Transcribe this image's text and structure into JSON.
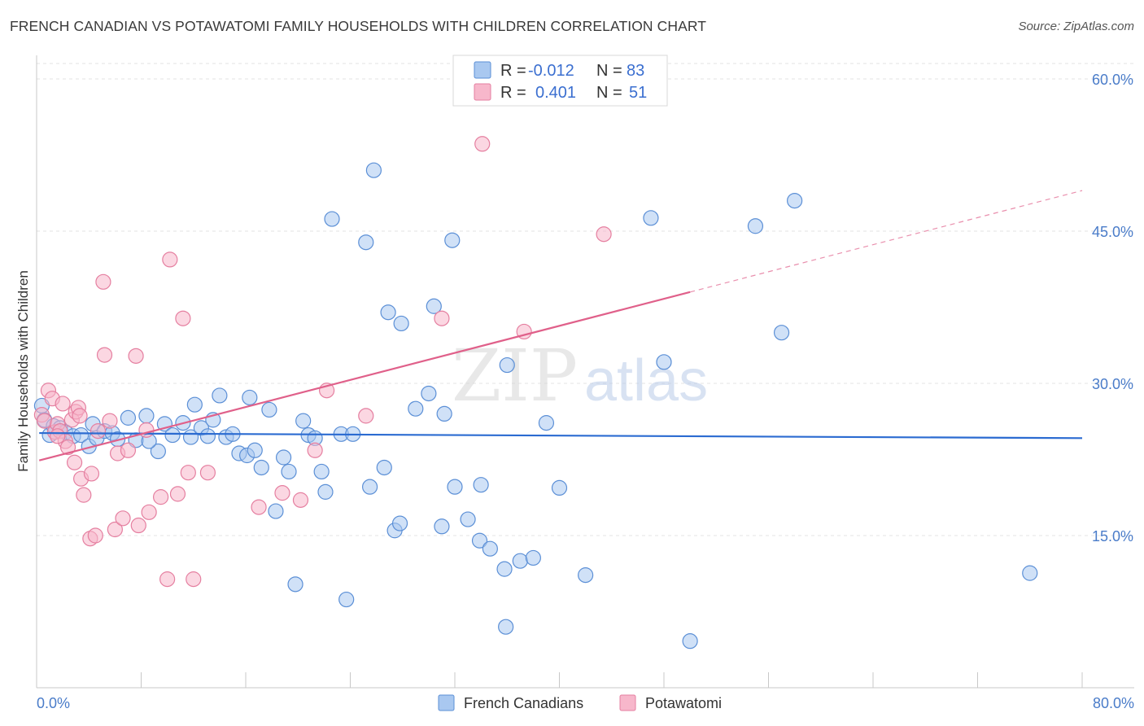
{
  "header": {
    "title": "FRENCH CANADIAN VS POTAWATOMI FAMILY HOUSEHOLDS WITH CHILDREN CORRELATION CHART",
    "source": "Source: ZipAtlas.com"
  },
  "watermark": {
    "zip": "ZIP",
    "atlas": "atlas"
  },
  "legend": {
    "r_label": "R =",
    "n_label": "N =",
    "rows": [
      {
        "series": "French Canadians",
        "r": "-0.012",
        "n": "83"
      },
      {
        "series": "Potawatomi",
        "r": "0.401",
        "n": "51"
      }
    ]
  },
  "chart_data": {
    "type": "scatter",
    "title": "FRENCH CANADIAN VS POTAWATOMI FAMILY HOUSEHOLDS WITH CHILDREN CORRELATION CHART",
    "xlabel": "",
    "ylabel": "Family Households with Children",
    "xlim": [
      0,
      80
    ],
    "ylim": [
      0,
      62
    ],
    "x_tick_labels": {
      "min": "0.0%",
      "max": "80.0%"
    },
    "x_ticks_minor": [
      0,
      8,
      16,
      24,
      32,
      40,
      48,
      56,
      64,
      72,
      80
    ],
    "y_ticks": [
      {
        "value": 15,
        "label": "15.0%"
      },
      {
        "value": 30,
        "label": "30.0%"
      },
      {
        "value": 45,
        "label": "45.0%"
      },
      {
        "value": 60,
        "label": "60.0%"
      }
    ],
    "grid": true,
    "legend_position": "bottom-center",
    "colors": {
      "french_fill": "#a9c8f0",
      "french_stroke": "#5b8fd6",
      "french_line": "#2b6bd1",
      "pota_fill": "#f7b7cb",
      "pota_stroke": "#e57fa0",
      "pota_line": "#e0608a"
    },
    "series": [
      {
        "name": "French Canadians",
        "trend": {
          "x": [
            0.2,
            80
          ],
          "y": [
            25.1,
            24.6
          ],
          "dashed_from": null
        },
        "points": [
          [
            0.4,
            27.8
          ],
          [
            0.6,
            26.4
          ],
          [
            1.0,
            24.9
          ],
          [
            1.3,
            25.8
          ],
          [
            1.8,
            25.6
          ],
          [
            2.2,
            25.2
          ],
          [
            2.8,
            24.8
          ],
          [
            3.4,
            24.9
          ],
          [
            4.0,
            23.8
          ],
          [
            4.3,
            26.0
          ],
          [
            4.6,
            24.6
          ],
          [
            5.2,
            25.3
          ],
          [
            5.8,
            25.1
          ],
          [
            6.2,
            24.5
          ],
          [
            7.0,
            26.6
          ],
          [
            7.6,
            24.4
          ],
          [
            8.4,
            26.8
          ],
          [
            9.3,
            23.3
          ],
          [
            9.8,
            26.0
          ],
          [
            10.4,
            24.9
          ],
          [
            11.2,
            26.1
          ],
          [
            11.8,
            24.7
          ],
          [
            12.1,
            27.9
          ],
          [
            12.6,
            25.6
          ],
          [
            13.1,
            24.8
          ],
          [
            13.5,
            26.4
          ],
          [
            14.0,
            28.8
          ],
          [
            14.5,
            24.7
          ],
          [
            15.0,
            25.0
          ],
          [
            15.5,
            23.1
          ],
          [
            16.1,
            22.9
          ],
          [
            16.3,
            28.6
          ],
          [
            16.7,
            23.4
          ],
          [
            17.2,
            21.7
          ],
          [
            17.8,
            27.4
          ],
          [
            18.3,
            17.4
          ],
          [
            18.9,
            22.7
          ],
          [
            19.3,
            21.3
          ],
          [
            19.8,
            10.2
          ],
          [
            20.4,
            26.3
          ],
          [
            20.8,
            24.9
          ],
          [
            21.3,
            24.6
          ],
          [
            21.8,
            21.3
          ],
          [
            22.1,
            19.3
          ],
          [
            22.6,
            46.2
          ],
          [
            23.3,
            25.0
          ],
          [
            23.7,
            8.7
          ],
          [
            24.2,
            25.0
          ],
          [
            25.2,
            43.9
          ],
          [
            25.5,
            19.8
          ],
          [
            25.8,
            51.0
          ],
          [
            26.6,
            21.7
          ],
          [
            26.9,
            37.0
          ],
          [
            27.4,
            15.5
          ],
          [
            27.8,
            16.2
          ],
          [
            27.9,
            35.9
          ],
          [
            29.0,
            27.5
          ],
          [
            30.0,
            29.0
          ],
          [
            30.4,
            37.6
          ],
          [
            31.0,
            15.9
          ],
          [
            31.2,
            27.0
          ],
          [
            31.8,
            44.1
          ],
          [
            32.0,
            19.8
          ],
          [
            33.0,
            16.6
          ],
          [
            33.9,
            14.5
          ],
          [
            34.0,
            20.0
          ],
          [
            34.7,
            13.7
          ],
          [
            35.8,
            11.7
          ],
          [
            35.9,
            6.0
          ],
          [
            36.0,
            31.8
          ],
          [
            37.0,
            12.5
          ],
          [
            38.0,
            12.8
          ],
          [
            39.0,
            26.1
          ],
          [
            40.0,
            19.7
          ],
          [
            42.0,
            11.1
          ],
          [
            47.0,
            46.3
          ],
          [
            48.0,
            32.1
          ],
          [
            50.0,
            4.6
          ],
          [
            55.0,
            45.5
          ],
          [
            57.0,
            35.0
          ],
          [
            58.0,
            48.0
          ],
          [
            76.0,
            11.3
          ],
          [
            8.6,
            24.3
          ]
        ]
      },
      {
        "name": "Potawatomi",
        "trend": {
          "x": [
            0.2,
            50.0
          ],
          "y": [
            22.4,
            39.0
          ],
          "dashed_to": [
            80.0,
            49.0
          ]
        },
        "points": [
          [
            0.4,
            26.9
          ],
          [
            0.6,
            26.3
          ],
          [
            0.9,
            29.3
          ],
          [
            1.2,
            28.5
          ],
          [
            1.4,
            25.2
          ],
          [
            1.6,
            26.0
          ],
          [
            1.8,
            25.3
          ],
          [
            2.0,
            28.0
          ],
          [
            2.2,
            24.3
          ],
          [
            2.4,
            23.7
          ],
          [
            2.7,
            26.4
          ],
          [
            3.0,
            27.2
          ],
          [
            3.2,
            27.6
          ],
          [
            3.3,
            26.8
          ],
          [
            3.4,
            20.6
          ],
          [
            3.6,
            19.0
          ],
          [
            4.1,
            14.7
          ],
          [
            4.2,
            21.1
          ],
          [
            4.5,
            15.0
          ],
          [
            4.7,
            25.3
          ],
          [
            5.1,
            40.0
          ],
          [
            5.2,
            32.8
          ],
          [
            5.6,
            26.3
          ],
          [
            6.0,
            15.6
          ],
          [
            6.2,
            23.1
          ],
          [
            6.6,
            16.7
          ],
          [
            7.0,
            23.4
          ],
          [
            7.6,
            32.7
          ],
          [
            7.8,
            16.0
          ],
          [
            8.4,
            25.4
          ],
          [
            8.6,
            17.3
          ],
          [
            9.5,
            18.8
          ],
          [
            10.0,
            10.7
          ],
          [
            10.2,
            42.2
          ],
          [
            10.8,
            19.1
          ],
          [
            11.2,
            36.4
          ],
          [
            11.6,
            21.2
          ],
          [
            12.0,
            10.7
          ],
          [
            13.1,
            21.2
          ],
          [
            17.0,
            17.8
          ],
          [
            18.8,
            19.2
          ],
          [
            20.2,
            18.5
          ],
          [
            21.3,
            23.4
          ],
          [
            22.2,
            29.3
          ],
          [
            25.2,
            26.8
          ],
          [
            31.0,
            36.4
          ],
          [
            34.1,
            53.6
          ],
          [
            37.3,
            35.1
          ],
          [
            43.4,
            44.7
          ],
          [
            1.6,
            24.8
          ],
          [
            2.9,
            22.2
          ]
        ]
      }
    ]
  }
}
